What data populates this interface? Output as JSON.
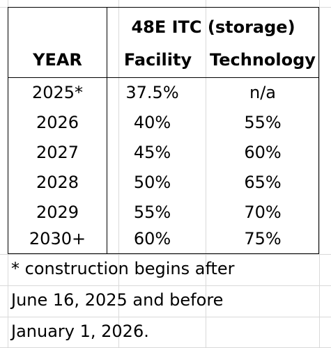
{
  "table": {
    "group_header": "48E ITC (storage)",
    "columns": [
      "YEAR",
      "Facility",
      "Technology"
    ],
    "rows": [
      {
        "year": "2025*",
        "facility": "37.5%",
        "technology": "n/a"
      },
      {
        "year": "2026",
        "facility": "40%",
        "technology": "55%"
      },
      {
        "year": "2027",
        "facility": "45%",
        "technology": "60%"
      },
      {
        "year": "2028",
        "facility": "50%",
        "technology": "65%"
      },
      {
        "year": "2029",
        "facility": "55%",
        "technology": "70%"
      },
      {
        "year": "2030+",
        "facility": "60%",
        "technology": "75%"
      }
    ]
  },
  "footnote": {
    "lines": [
      "* construction begins after",
      "June 16, 2025 and before",
      "January 1, 2026."
    ]
  }
}
